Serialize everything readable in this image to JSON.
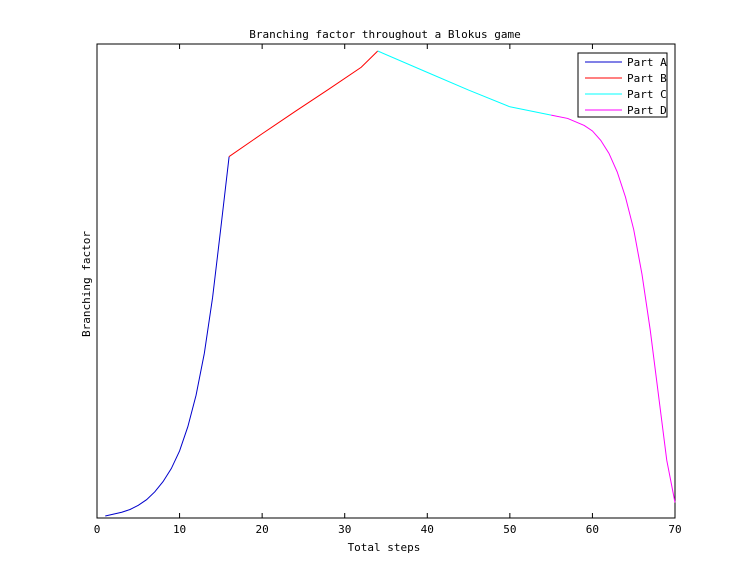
{
  "chart_data": {
    "type": "line",
    "title": "Branching factor throughout a Blokus game",
    "xlabel": "Total steps",
    "ylabel": "Branching factor",
    "xlim": [
      0,
      70
    ],
    "ylim": [
      0,
      100
    ],
    "xticks": [
      0,
      10,
      20,
      30,
      40,
      50,
      60,
      70
    ],
    "yticks_shown": false,
    "grid": false,
    "legend_position": "top-right",
    "series": [
      {
        "name": "Part A",
        "color": "#0000cc",
        "x": [
          1,
          2,
          3,
          4,
          5,
          6,
          7,
          8,
          9,
          10,
          11,
          12,
          13,
          14,
          15,
          16
        ],
        "y": [
          0.0,
          0.4,
          0.8,
          1.4,
          2.3,
          3.5,
          5.2,
          7.4,
          10.2,
          14.0,
          19.2,
          26.0,
          35.0,
          47.0,
          62.0,
          77.3
        ]
      },
      {
        "name": "Part B",
        "color": "#ff0000",
        "x": [
          16,
          20,
          24,
          28,
          32,
          34
        ],
        "y": [
          77.3,
          82.2,
          87.0,
          91.7,
          96.5,
          100.0
        ]
      },
      {
        "name": "Part C",
        "color": "#00ffff",
        "x": [
          34,
          40,
          45,
          50,
          55
        ],
        "y": [
          100.0,
          95.4,
          91.6,
          88.0,
          86.2
        ]
      },
      {
        "name": "Part D",
        "color": "#ff00ff",
        "x": [
          55,
          57,
          59,
          60,
          61,
          62,
          63,
          64,
          65,
          66,
          67,
          68,
          69,
          70
        ],
        "y": [
          86.2,
          85.5,
          84.0,
          82.8,
          80.8,
          78.0,
          74.0,
          68.6,
          61.6,
          52.0,
          40.0,
          26.0,
          12.0,
          2.9
        ]
      }
    ]
  }
}
